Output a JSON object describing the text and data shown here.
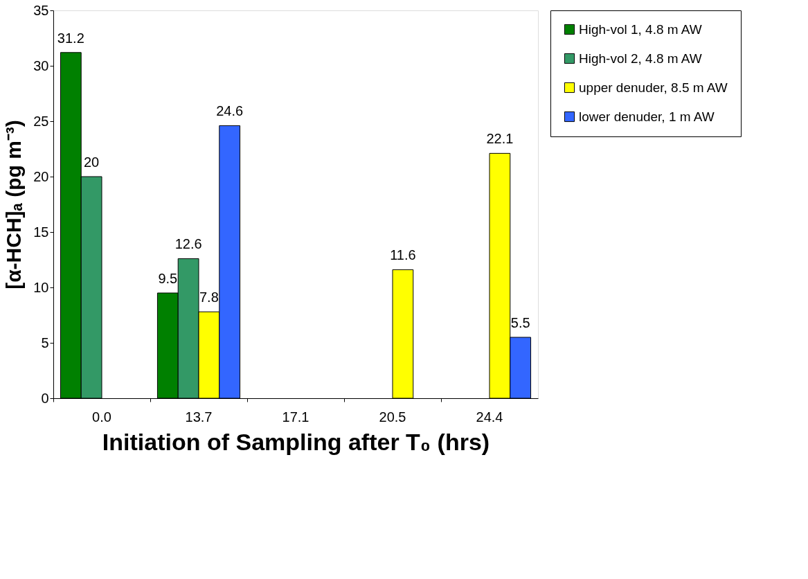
{
  "chart_data": {
    "type": "bar",
    "xlabel": "Initiation of Sampling after T₀ (hrs)",
    "ylabel": "[α-HCH]ₐ (pg m⁻³)",
    "categories": [
      "0.0",
      "13.7",
      "17.1",
      "20.5",
      "24.4"
    ],
    "series": [
      {
        "name": "High-vol 1, 4.8 m AW",
        "color": "#008000",
        "values": [
          31.2,
          9.5,
          null,
          null,
          null
        ]
      },
      {
        "name": "High-vol 2, 4.8 m AW",
        "color": "#339966",
        "values": [
          20,
          12.6,
          null,
          null,
          null
        ]
      },
      {
        "name": "upper denuder, 8.5 m AW",
        "color": "#ffff00",
        "values": [
          null,
          7.8,
          null,
          11.6,
          22.1
        ]
      },
      {
        "name": "lower denuder, 1 m AW",
        "color": "#3366ff",
        "values": [
          null,
          24.6,
          null,
          null,
          5.5
        ]
      }
    ],
    "ylim": [
      0,
      35
    ],
    "yticks": [
      0,
      5,
      10,
      15,
      20,
      25,
      30,
      35
    ],
    "data_labels": true,
    "grid": false,
    "legend": "top right"
  }
}
